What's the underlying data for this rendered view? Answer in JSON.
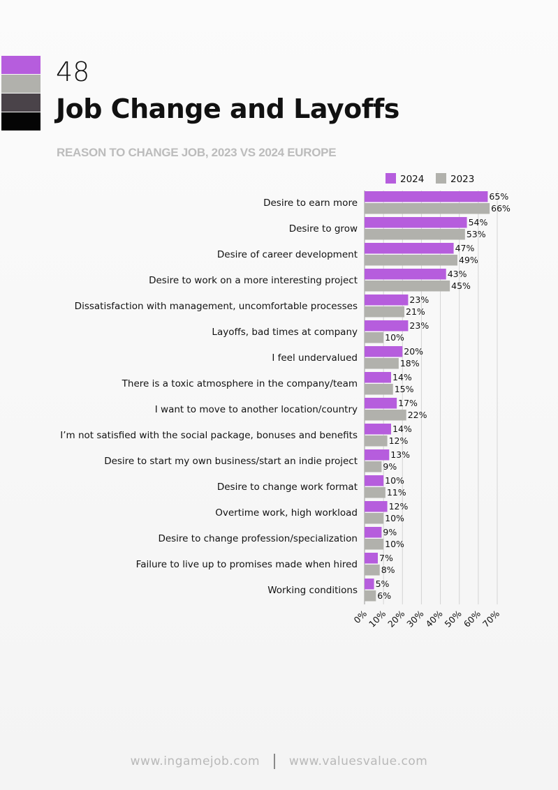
{
  "page_number": "48",
  "title": "Job Change and Layoffs",
  "subtitle": "REASON TO CHANGE JOB, 2023 VS 2024 EUROPE",
  "swatches": [
    "#b65ddd",
    "#b1b1ac",
    "#4a4349",
    "#050505"
  ],
  "colors": {
    "series_2024": "#b65ddd",
    "series_2023": "#b1b1ac",
    "grid": "#d4d4d4",
    "axis": "#9a9a9a"
  },
  "footer": {
    "left": "www.ingamejob.com",
    "right": "www.valuesvalue.com"
  },
  "chart_data": {
    "type": "bar",
    "orientation": "horizontal",
    "title": "REASON TO CHANGE JOB, 2023 VS 2024 EUROPE",
    "xlim": [
      0,
      70
    ],
    "x_ticks": [
      "0%",
      "10%",
      "20%",
      "30%",
      "40%",
      "50%",
      "60%",
      "70%"
    ],
    "grid": "vertical",
    "legend": "top",
    "categories": [
      "Desire to earn more",
      "Desire to grow",
      "Desire of career development",
      "Desire to work on a more interesting project",
      "Dissatisfaction with management, uncomfortable processes",
      "Layoffs, bad times at company",
      "I feel undervalued",
      "There is a toxic atmosphere in the company/team",
      "I want to move to another location/country",
      "I’m not satisfied with the social package, bonuses and benefits",
      "Desire to start my own business/start an indie project",
      "Desire to change work format",
      "Overtime work, high workload",
      "Desire to change profession/specialization",
      "Failure to live up to promises made when hired",
      "Working conditions"
    ],
    "series": [
      {
        "name": "2024",
        "values": [
          65,
          54,
          47,
          43,
          23,
          23,
          20,
          14,
          17,
          14,
          13,
          10,
          12,
          9,
          7,
          5
        ],
        "labels": [
          "65%",
          "54%",
          "47%",
          "43%",
          "23%",
          "23%",
          "20%",
          "14%",
          "17%",
          "14%",
          "13%",
          "10%",
          "12%",
          "9%",
          "7%",
          "5%"
        ]
      },
      {
        "name": "2023",
        "values": [
          66,
          53,
          49,
          45,
          21,
          10,
          18,
          15,
          22,
          12,
          9,
          11,
          10,
          10,
          8,
          6
        ],
        "labels": [
          "66%",
          "53%",
          "49%",
          "45%",
          "21%",
          "10%",
          "18%",
          "15%",
          "22%",
          "12%",
          "9%",
          "11%",
          "10%",
          "10%",
          "8%",
          "6%"
        ]
      }
    ]
  }
}
